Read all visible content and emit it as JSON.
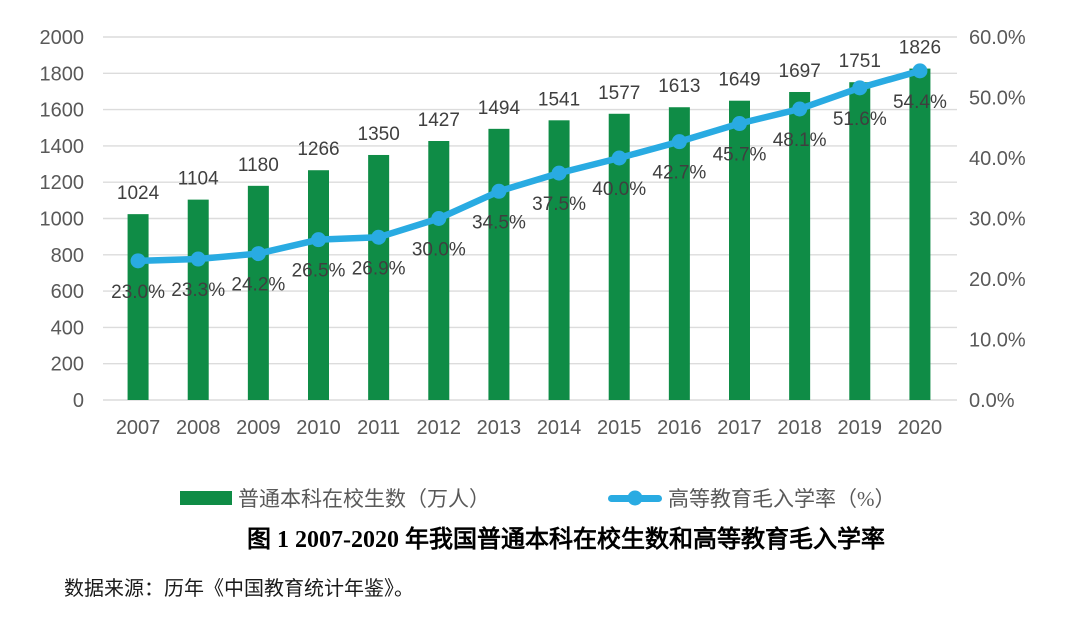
{
  "title": "图 1 2007-2020 年我国普通本科在校生数和高等教育毛入学率",
  "source": "数据来源：历年《中国教育统计年鉴》。",
  "colors": {
    "bar_green": "#0f8c46",
    "line_blue": "#29abe2",
    "gridline": "#dcdcdc",
    "axis_text": "#595959",
    "data_label_text": "#3f3f3f",
    "background": "#ffffff"
  },
  "legend": {
    "items": [
      {
        "label": "普通本科在校生数（万人）",
        "swatch": "bar-swatch",
        "color": "#0f8c46"
      },
      {
        "label": "高等教育毛入学率（%）",
        "swatch": "line-swatch",
        "color": "#29abe2"
      }
    ]
  },
  "chart_data": {
    "type": "bar+line",
    "title": "图 1 2007-2020 年我国普通本科在校生数和高等教育毛入学率",
    "categories": [
      "2007",
      "2008",
      "2009",
      "2010",
      "2011",
      "2012",
      "2013",
      "2014",
      "2015",
      "2016",
      "2017",
      "2018",
      "2019",
      "2020"
    ],
    "series": [
      {
        "name": "普通本科在校生数（万人）",
        "type": "bar",
        "axis": "left",
        "color": "#0f8c46",
        "values": [
          1024,
          1104,
          1180,
          1266,
          1350,
          1427,
          1494,
          1541,
          1577,
          1613,
          1649,
          1697,
          1751,
          1826
        ],
        "labels": [
          "1024",
          "1104",
          "1180",
          "1266",
          "1350",
          "1427",
          "1494",
          "1541",
          "1577",
          "1613",
          "1649",
          "1697",
          "1751",
          "1826"
        ]
      },
      {
        "name": "高等教育毛入学率（%）",
        "type": "line",
        "axis": "right",
        "color": "#29abe2",
        "values": [
          23.0,
          23.3,
          24.2,
          26.5,
          26.9,
          30.0,
          34.5,
          37.5,
          40.0,
          42.7,
          45.7,
          48.1,
          51.6,
          54.4
        ],
        "labels": [
          "23.0%",
          "23.3%",
          "24.2%",
          "26.5%",
          "26.9%",
          "30.0%",
          "34.5%",
          "37.5%",
          "40.0%",
          "42.7%",
          "45.7%",
          "48.1%",
          "51.6%",
          "54.4%"
        ]
      }
    ],
    "left_axis": {
      "min": 0,
      "max": 2000,
      "step": 200,
      "ticks": [
        "2000",
        "1800",
        "1600",
        "1400",
        "1200",
        "1000",
        "800",
        "600",
        "400",
        "200",
        "0"
      ]
    },
    "right_axis": {
      "min": 0,
      "max": 60,
      "step": 10,
      "ticks": [
        "60.0%",
        "50.0%",
        "40.0%",
        "30.0%",
        "20.0%",
        "10.0%",
        "0.0%"
      ]
    },
    "grid": true,
    "legend_position": "bottom",
    "xlabel": "",
    "ylabel_left": "",
    "ylabel_right": ""
  }
}
